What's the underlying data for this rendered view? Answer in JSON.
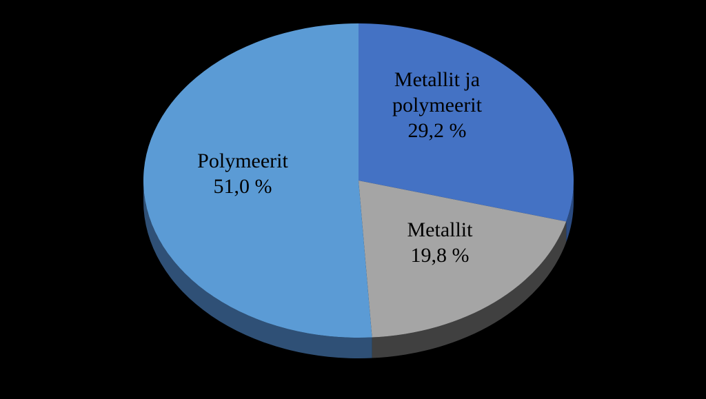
{
  "chart_data": {
    "type": "pie",
    "title": "",
    "slices": [
      {
        "label_lines": [
          "Metallit ja",
          "polymeerit"
        ],
        "value_text": "29,2 %",
        "value": 29.2,
        "color": "#4472C4",
        "side_color": "#2A4A80"
      },
      {
        "label_lines": [
          "Metallit"
        ],
        "value_text": "19,8 %",
        "value": 19.8,
        "color": "#A5A5A5",
        "side_color": "#404040"
      },
      {
        "label_lines": [
          "Polymeerit"
        ],
        "value_text": "51,0 %",
        "value": 51.0,
        "color": "#5B9BD5",
        "side_color": "#2F5076"
      }
    ],
    "background": "#000000",
    "legend": "none",
    "style": "3d-tilted"
  }
}
